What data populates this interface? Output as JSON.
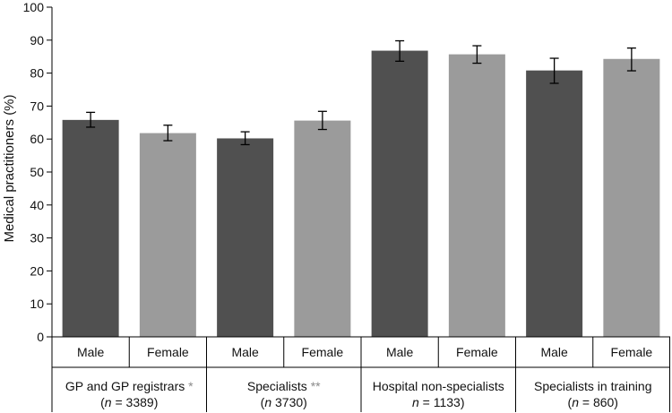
{
  "chart_data": {
    "type": "bar",
    "ylabel": "Medical practitioners (%)",
    "ylim": [
      0,
      100
    ],
    "yticks": [
      0,
      10,
      20,
      30,
      40,
      50,
      60,
      70,
      80,
      90,
      100
    ],
    "series_colors": {
      "Male": "#505050",
      "Female": "#9b9b9b"
    },
    "groups": [
      {
        "label": "GP and GP registrars",
        "marker": "*",
        "n_prefix": "(",
        "n_italic": "n",
        "n_text": " = 3389)",
        "bars": [
          {
            "category": "Male",
            "value": 65.8,
            "err_low": 63.6,
            "err_high": 68.1
          },
          {
            "category": "Female",
            "value": 61.8,
            "err_low": 59.5,
            "err_high": 64.2
          }
        ]
      },
      {
        "label": "Specialists",
        "marker": "**",
        "n_prefix": "(",
        "n_italic": "n",
        "n_text": " 3730)",
        "bars": [
          {
            "category": "Male",
            "value": 60.2,
            "err_low": 58.3,
            "err_high": 62.2
          },
          {
            "category": "Female",
            "value": 65.6,
            "err_low": 62.9,
            "err_high": 68.4
          }
        ]
      },
      {
        "label": "Hospital non-specialists",
        "marker": "",
        "n_prefix": "",
        "n_italic": "n",
        "n_text": " = 1133)",
        "bars": [
          {
            "category": "Male",
            "value": 86.8,
            "err_low": 83.6,
            "err_high": 89.8
          },
          {
            "category": "Female",
            "value": 85.7,
            "err_low": 83.0,
            "err_high": 88.3
          }
        ]
      },
      {
        "label": "Specialists in training",
        "marker": "",
        "n_prefix": "(",
        "n_italic": "n",
        "n_text": " = 860)",
        "bars": [
          {
            "category": "Male",
            "value": 80.8,
            "err_low": 76.9,
            "err_high": 84.5
          },
          {
            "category": "Female",
            "value": 84.3,
            "err_low": 80.7,
            "err_high": 87.6
          }
        ]
      }
    ]
  }
}
